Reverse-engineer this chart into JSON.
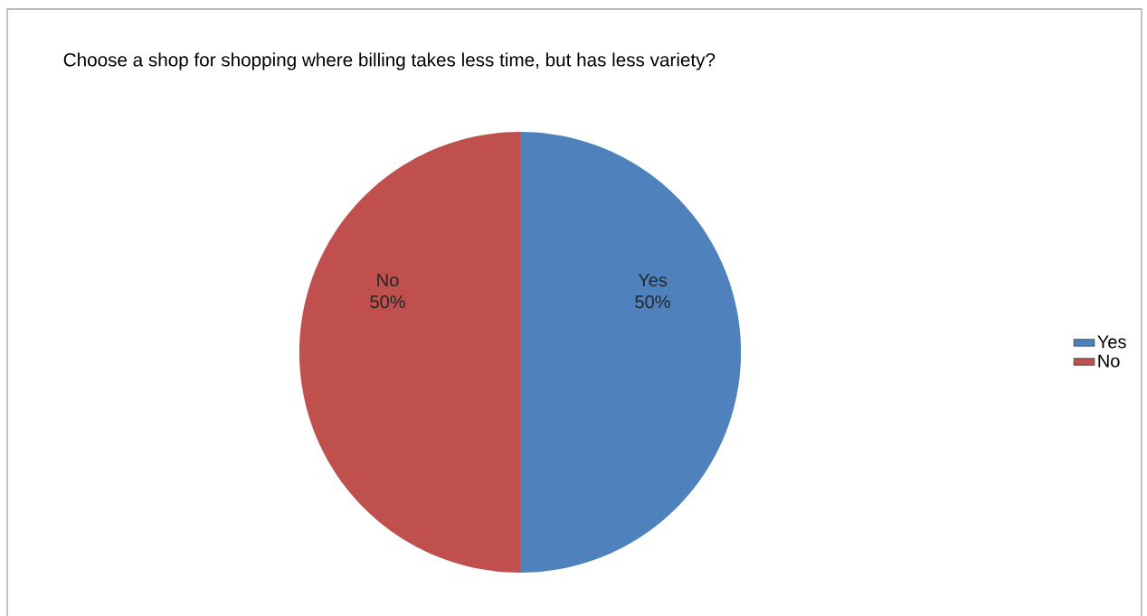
{
  "chart_data": {
    "type": "pie",
    "title": "Choose a shop for shopping  where billing takes less time, but has less variety?",
    "categories": [
      "Yes",
      "No"
    ],
    "values": [
      50,
      50
    ],
    "value_labels": [
      "50%",
      "50%"
    ],
    "colors": [
      "#4f81bd",
      "#c0504d"
    ],
    "legend": "right"
  }
}
